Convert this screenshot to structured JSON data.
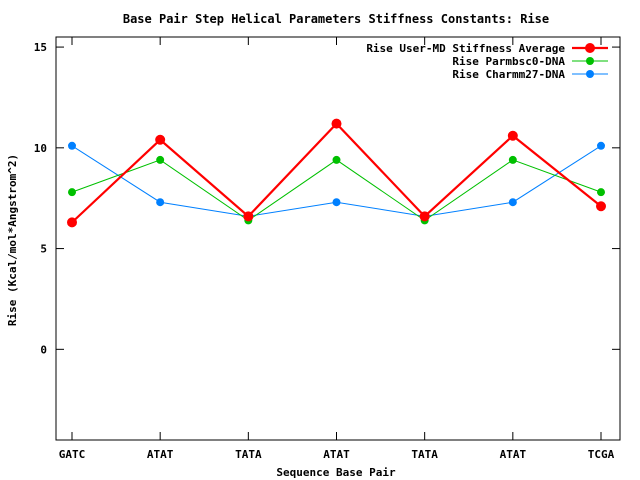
{
  "chart_data": {
    "type": "line",
    "title": "Base Pair Step Helical Parameters Stiffness Constants: Rise",
    "xlabel": "Sequence Base Pair",
    "ylabel": "Rise (Kcal/mol*Angstrom^2)",
    "categories": [
      "GATC",
      "ATAT",
      "TATA",
      "ATAT",
      "TATA",
      "ATAT",
      "TCGA"
    ],
    "ylim": [
      -4.5,
      15.5
    ],
    "yticks": [
      0,
      5,
      10,
      15
    ],
    "grid": false,
    "legend_position": "top-right",
    "series": [
      {
        "name": "Rise User-MD Stiffness Average",
        "color": "#ff0000",
        "values": [
          6.3,
          10.4,
          6.6,
          11.2,
          6.6,
          10.6,
          7.1
        ]
      },
      {
        "name": "Rise Parmbsc0-DNA",
        "color": "#00c000",
        "values": [
          7.8,
          9.4,
          6.4,
          9.4,
          6.4,
          9.4,
          7.8
        ]
      },
      {
        "name": "Rise Charmm27-DNA",
        "color": "#0080ff",
        "values": [
          10.1,
          7.3,
          6.6,
          7.3,
          6.6,
          7.3,
          10.1
        ]
      }
    ]
  }
}
